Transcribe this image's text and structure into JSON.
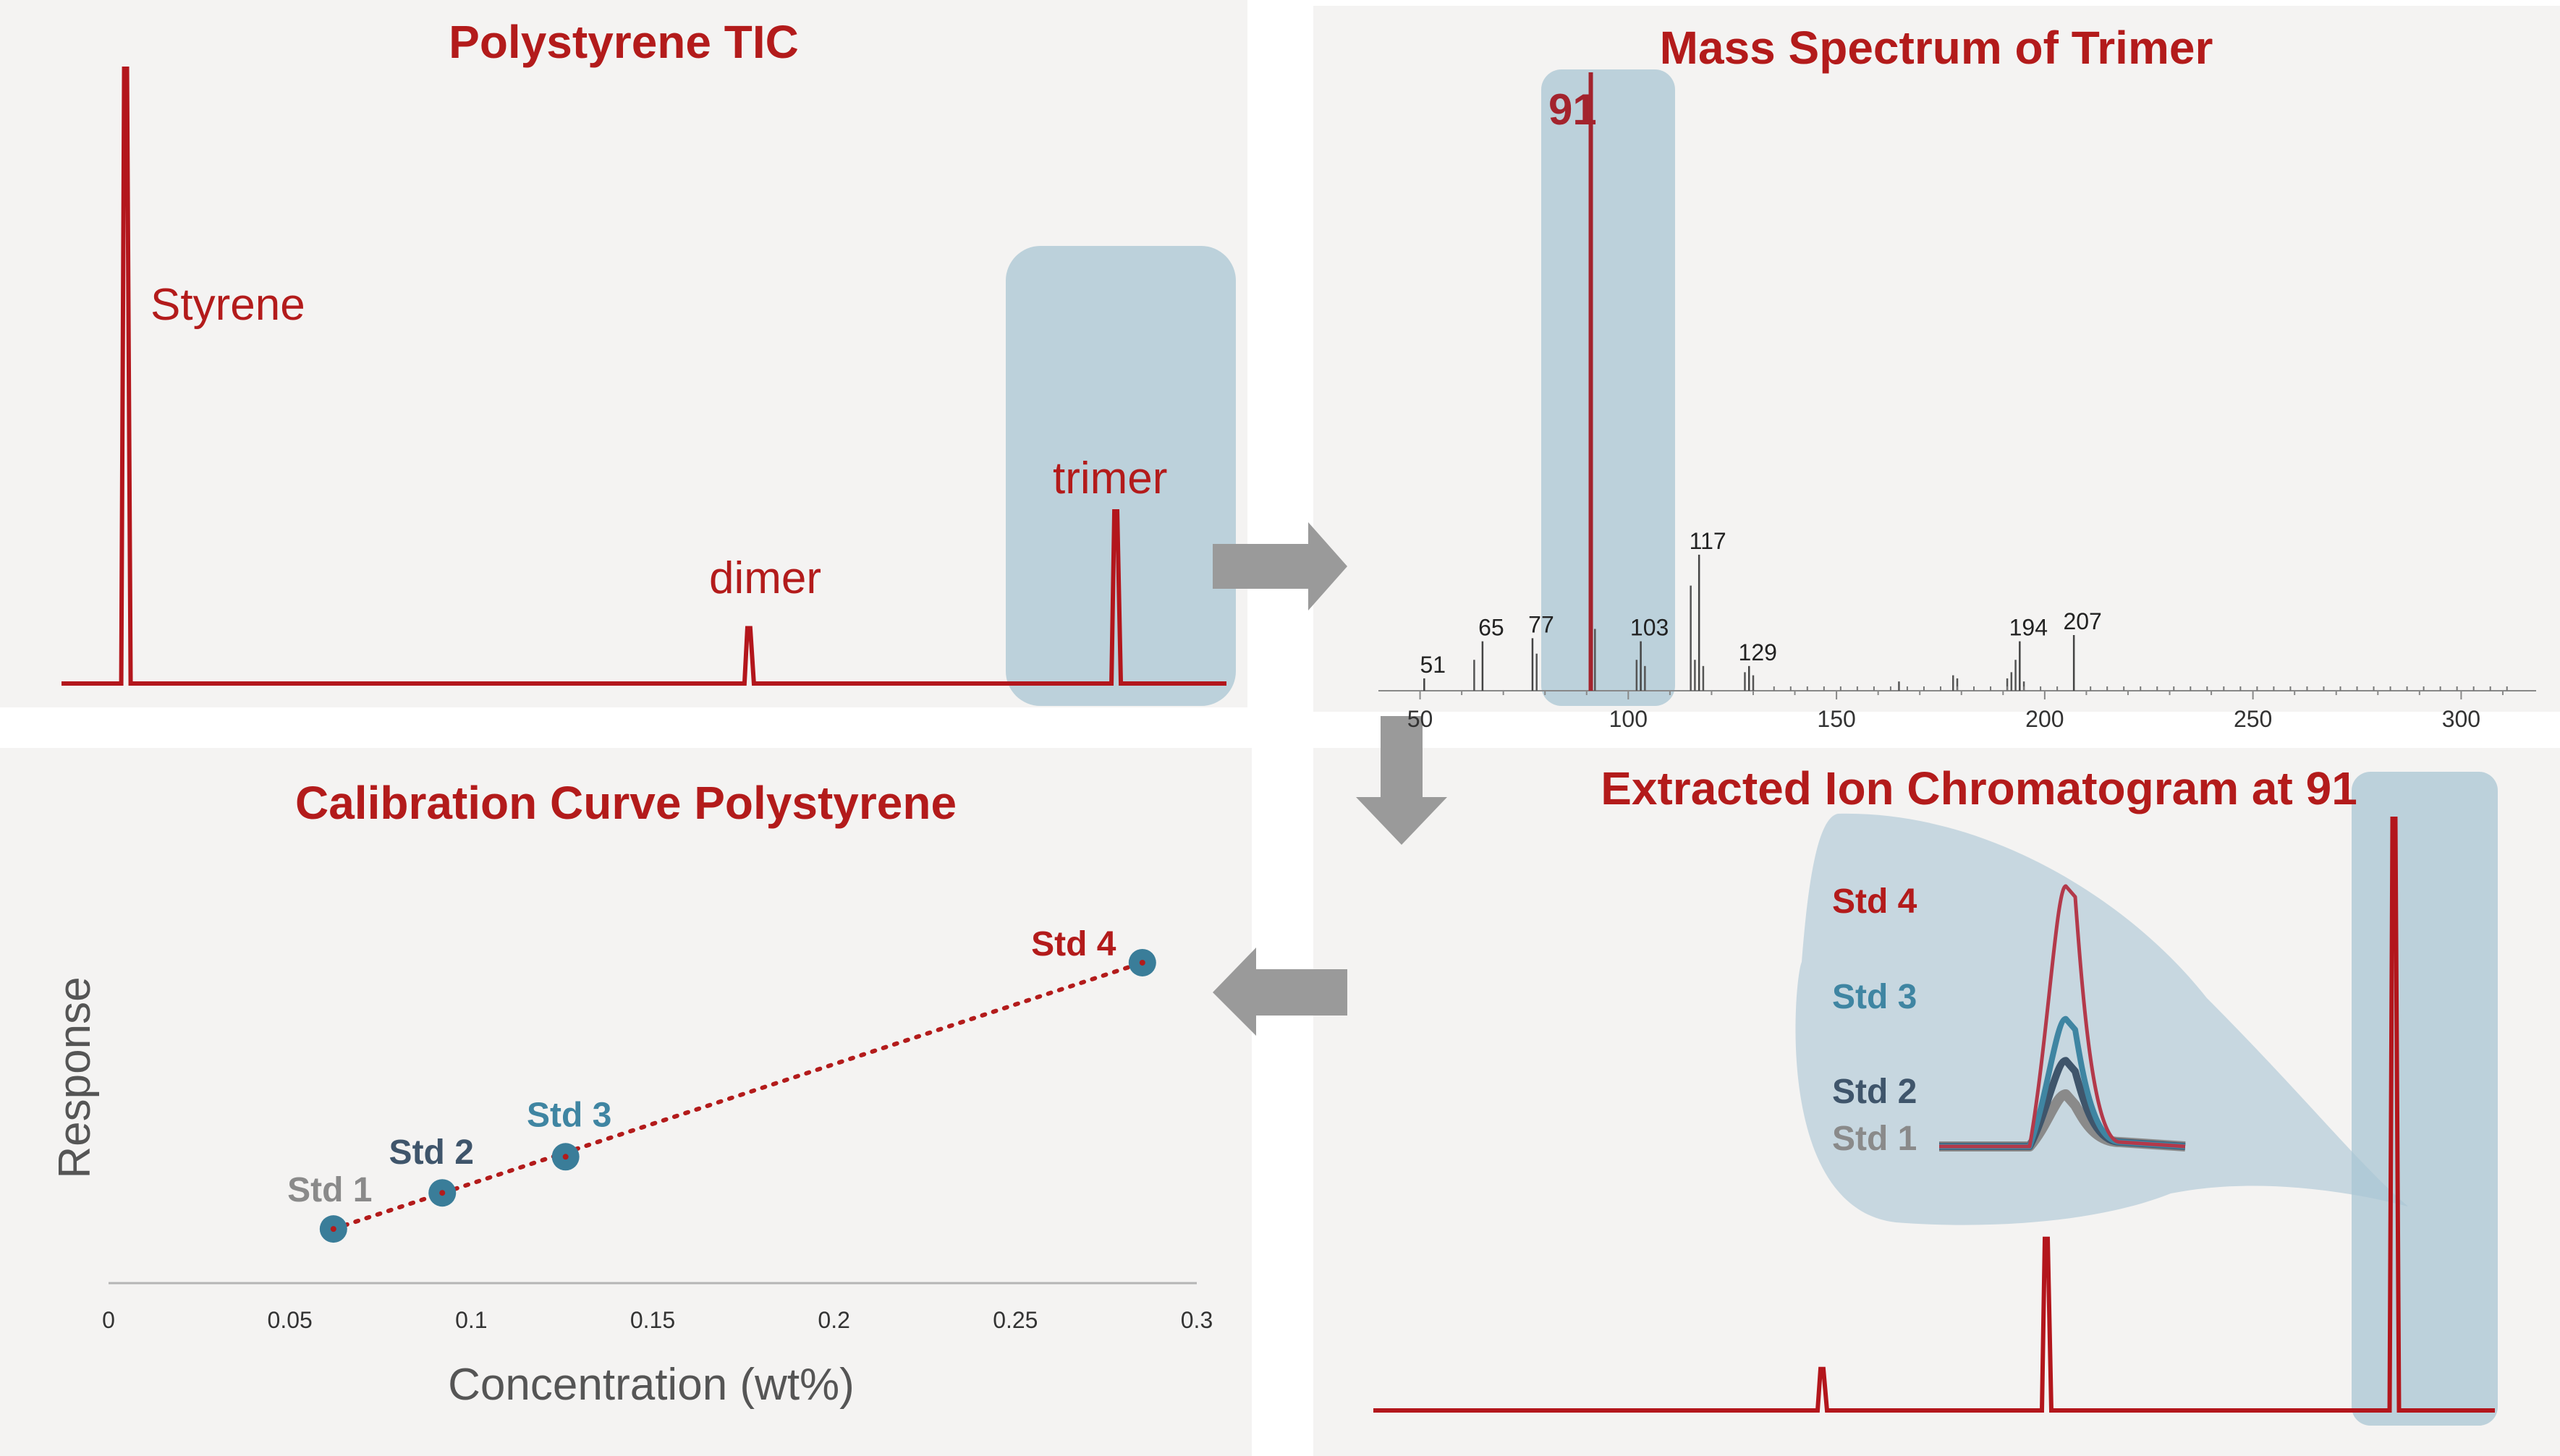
{
  "colors": {
    "red": "#b31b1b",
    "line_red": "#b3161c",
    "highlight": "#a9c5d3",
    "std1": "#8a8a8a",
    "std2": "#3f556b",
    "std3": "#3f85a2",
    "std4": "#b31b1b",
    "marker": "#3a7d99",
    "arrow": "#9a9a9a"
  },
  "arrow_icons": [
    "arrow-right-icon",
    "arrow-down-icon",
    "arrow-left-icon"
  ],
  "chart_data": [
    {
      "id": "tic",
      "type": "line",
      "title": "Polystyrene TIC",
      "annotations": [
        "Styrene",
        "dimer",
        "trimer"
      ],
      "peaks": [
        {
          "x": 0.055,
          "value": 1.0
        },
        {
          "x": 0.59,
          "value": 0.09
        },
        {
          "x": 0.905,
          "value": 0.28
        }
      ],
      "highlight": "trimer region"
    },
    {
      "id": "mass_spectrum",
      "type": "bar",
      "title": "Mass Spectrum of Trimer",
      "xlim": [
        40,
        318
      ],
      "x_ticks": [
        50,
        100,
        150,
        200,
        250,
        300
      ],
      "base_peak_label": "91",
      "labeled_peaks": [
        {
          "mz": 51,
          "label": "51",
          "value": 0.02
        },
        {
          "mz": 65,
          "label": "65",
          "value": 0.08
        },
        {
          "mz": 77,
          "label": "77",
          "value": 0.085
        },
        {
          "mz": 91,
          "label": "91",
          "value": 1.0
        },
        {
          "mz": 103,
          "label": "103",
          "value": 0.08
        },
        {
          "mz": 117,
          "label": "117",
          "value": 0.22
        },
        {
          "mz": 129,
          "label": "129",
          "value": 0.04
        },
        {
          "mz": 194,
          "label": "194",
          "value": 0.08
        },
        {
          "mz": 207,
          "label": "207",
          "value": 0.09
        }
      ],
      "minor_peaks": [
        {
          "mz": 63,
          "value": 0.05
        },
        {
          "mz": 78,
          "value": 0.06
        },
        {
          "mz": 92,
          "value": 0.1
        },
        {
          "mz": 102,
          "value": 0.05
        },
        {
          "mz": 104,
          "value": 0.04
        },
        {
          "mz": 115,
          "value": 0.17
        },
        {
          "mz": 116,
          "value": 0.05
        },
        {
          "mz": 118,
          "value": 0.04
        },
        {
          "mz": 128,
          "value": 0.03
        },
        {
          "mz": 130,
          "value": 0.025
        },
        {
          "mz": 178,
          "value": 0.025
        },
        {
          "mz": 179,
          "value": 0.02
        },
        {
          "mz": 191,
          "value": 0.02
        },
        {
          "mz": 192,
          "value": 0.03
        },
        {
          "mz": 193,
          "value": 0.05
        },
        {
          "mz": 195,
          "value": 0.015
        },
        {
          "mz": 165,
          "value": 0.015
        }
      ]
    },
    {
      "id": "calibration",
      "type": "scatter",
      "title": "Calibration Curve Polystyrene",
      "xlabel": "Concentration (wt%)",
      "ylabel": "Response",
      "xlim": [
        0,
        0.3
      ],
      "x_ticks": [
        "0",
        "0.05",
        "0.1",
        "0.15",
        "0.2",
        "0.25",
        "0.3"
      ],
      "points": [
        {
          "label": "Std 1",
          "x": 0.062,
          "y": 0.12
        },
        {
          "label": "Std 2",
          "x": 0.092,
          "y": 0.2
        },
        {
          "label": "Std 3",
          "x": 0.126,
          "y": 0.28
        },
        {
          "label": "Std 4",
          "x": 0.285,
          "y": 0.71
        }
      ],
      "fit_line": "dotted"
    },
    {
      "id": "eic",
      "type": "line",
      "title": "Extracted Ion Chromatogram at 91",
      "peaks": [
        {
          "x": 0.4,
          "value": 0.07
        },
        {
          "x": 0.6,
          "value": 0.29
        },
        {
          "x": 0.91,
          "value": 1.0
        }
      ],
      "inset_series": [
        {
          "name": "Std 4",
          "value": 1.0
        },
        {
          "name": "Std 3",
          "value": 0.49
        },
        {
          "name": "Std 2",
          "value": 0.33
        },
        {
          "name": "Std 1",
          "value": 0.2
        }
      ]
    }
  ]
}
